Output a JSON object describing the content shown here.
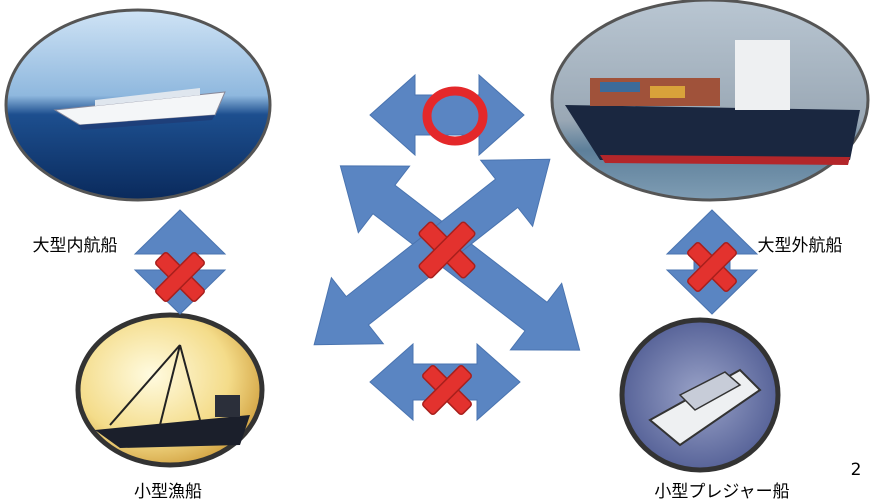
{
  "nodes": [
    {
      "label": "大型内航船"
    },
    {
      "label": "大型外航船"
    },
    {
      "label": "小型漁船"
    },
    {
      "label": "小型プレジャー船"
    }
  ],
  "page_number": "2"
}
